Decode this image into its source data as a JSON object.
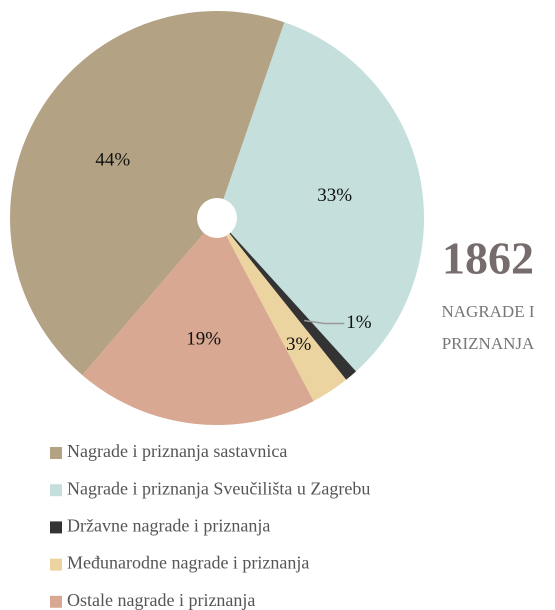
{
  "chart_data": {
    "type": "pie",
    "categories": [
      "Nagrade i priznanja sastavnica",
      "Nagrade i priznanja Sveučilišta u Zagrebu",
      "Državne nagrade i priznanja",
      "Međunarodne nagrade i priznanja",
      "Ostale nagrade i priznanja"
    ],
    "values": [
      44,
      33,
      1,
      3,
      19
    ],
    "value_labels": [
      "44%",
      "33%",
      "1%",
      "3%",
      "19%"
    ],
    "colors": [
      "#b4a285",
      "#c4dfdc",
      "#333333",
      "#ecd4a0",
      "#d8a892"
    ],
    "total": "1862",
    "total_label_lines": [
      "NAGRADE I",
      "PRIZNANJA"
    ]
  }
}
